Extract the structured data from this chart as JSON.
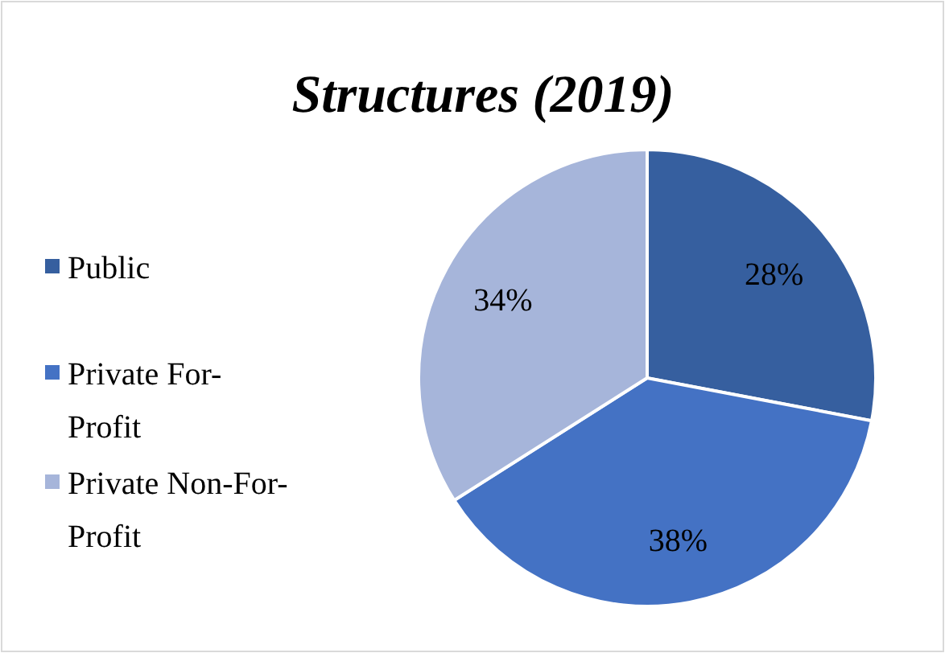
{
  "chart_data": {
    "type": "pie",
    "title": "Structures (2019)",
    "categories": [
      "Public",
      "Private For-Profit",
      "Private Non-For-Profit"
    ],
    "values": [
      28,
      38,
      34
    ],
    "colors": [
      "#365f9f",
      "#4472c4",
      "#a6b5da"
    ],
    "value_labels": [
      "28%",
      "38%",
      "34%"
    ],
    "legend": "left"
  }
}
